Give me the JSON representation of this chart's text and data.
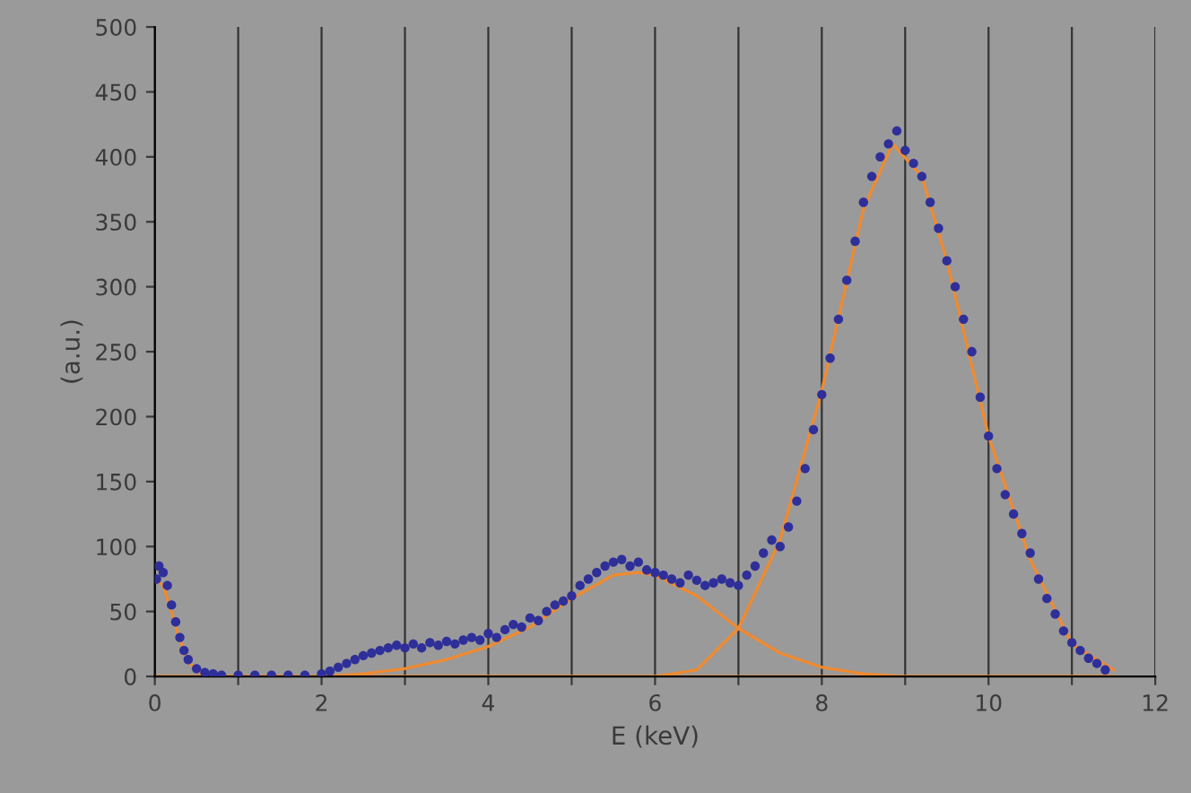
{
  "chart_data": {
    "type": "scatter",
    "xlabel": "E (keV)",
    "ylabel": "(a.u.)",
    "xlim": [
      0,
      12
    ],
    "ylim": [
      0,
      500
    ],
    "xticks": [
      0,
      {
        "value": 1,
        "label": null
      },
      2,
      {
        "value": 3,
        "label": null
      },
      4,
      {
        "value": 5,
        "label": null
      },
      6,
      {
        "value": 7,
        "label": null
      },
      8,
      {
        "value": 9,
        "label": null
      },
      10,
      {
        "value": 11,
        "label": null
      },
      12
    ],
    "yticks": [
      0,
      50,
      100,
      150,
      200,
      250,
      300,
      350,
      400,
      450,
      500
    ],
    "grid": "x",
    "legend": false,
    "series": [
      {
        "type": "line",
        "color": "#f08a30",
        "line_style": "solid",
        "marker": "none",
        "x": [
          0,
          0.1,
          0.2,
          0.3,
          0.4,
          0.5,
          0.6,
          0.8,
          11.5
        ],
        "values": [
          75,
          70,
          50,
          28,
          12,
          4,
          1,
          0,
          0
        ]
      },
      {
        "type": "line",
        "color": "#f08a30",
        "line_style": "solid",
        "marker": "none",
        "x": [
          0,
          2,
          2.5,
          3,
          3.5,
          4,
          4.5,
          5,
          5.5,
          5.8,
          6,
          6.5,
          7,
          7.5,
          8,
          8.5,
          9,
          11.5
        ],
        "values": [
          0,
          0,
          2,
          6,
          13,
          23,
          38,
          60,
          78,
          80,
          78,
          62,
          37,
          18,
          7,
          2,
          0,
          0
        ]
      },
      {
        "type": "line",
        "color": "#f08a30",
        "line_style": "solid",
        "marker": "none",
        "x": [
          0,
          6,
          6.5,
          7,
          7.5,
          8,
          8.5,
          8.85,
          9.2,
          9.5,
          10,
          10.5,
          11,
          11.5
        ],
        "values": [
          0,
          0,
          5,
          37,
          105,
          220,
          360,
          410,
          385,
          320,
          185,
          90,
          25,
          5
        ]
      },
      {
        "color": "#2f2f9a",
        "marker": "circle",
        "x": [
          0.02,
          0.05,
          0.1,
          0.15,
          0.2,
          0.25,
          0.3,
          0.35,
          0.4,
          0.5,
          0.6,
          0.7,
          0.8,
          1.0,
          1.2,
          1.4,
          1.6,
          1.8,
          2.0,
          2.1,
          2.2,
          2.3,
          2.4,
          2.5,
          2.6,
          2.7,
          2.8,
          2.9,
          3.0,
          3.1,
          3.2,
          3.3,
          3.4,
          3.5,
          3.6,
          3.7,
          3.8,
          3.9,
          4.0,
          4.1,
          4.2,
          4.3,
          4.4,
          4.5,
          4.6,
          4.7,
          4.8,
          4.9,
          5.0,
          5.1,
          5.2,
          5.3,
          5.4,
          5.5,
          5.6,
          5.7,
          5.8,
          5.9,
          6.0,
          6.1,
          6.2,
          6.3,
          6.4,
          6.5,
          6.6,
          6.7,
          6.8,
          6.9,
          7.0,
          7.1,
          7.2,
          7.3,
          7.4,
          7.5,
          7.6,
          7.7,
          7.8,
          7.9,
          8.0,
          8.1,
          8.2,
          8.3,
          8.4,
          8.5,
          8.6,
          8.7,
          8.8,
          8.9,
          9.0,
          9.1,
          9.2,
          9.3,
          9.4,
          9.5,
          9.6,
          9.7,
          9.8,
          9.9,
          10.0,
          10.1,
          10.2,
          10.3,
          10.4,
          10.5,
          10.6,
          10.7,
          10.8,
          10.9,
          11.0,
          11.1,
          11.2,
          11.3,
          11.4
        ],
        "values": [
          75,
          85,
          80,
          70,
          55,
          42,
          30,
          20,
          13,
          6,
          3,
          2,
          1,
          1,
          1,
          1,
          1,
          1,
          2,
          4,
          7,
          10,
          13,
          16,
          18,
          20,
          22,
          24,
          22,
          25,
          22,
          26,
          24,
          27,
          25,
          28,
          30,
          28,
          33,
          30,
          36,
          40,
          38,
          45,
          43,
          50,
          55,
          58,
          62,
          70,
          75,
          80,
          85,
          88,
          90,
          85,
          88,
          82,
          80,
          78,
          75,
          72,
          78,
          74,
          70,
          72,
          75,
          72,
          70,
          78,
          85,
          95,
          105,
          100,
          115,
          135,
          160,
          190,
          217,
          245,
          275,
          305,
          335,
          365,
          385,
          400,
          410,
          420,
          405,
          395,
          385,
          365,
          345,
          320,
          300,
          275,
          250,
          215,
          185,
          160,
          140,
          125,
          110,
          95,
          75,
          60,
          48,
          35,
          26,
          20,
          14,
          10,
          5
        ]
      }
    ]
  }
}
